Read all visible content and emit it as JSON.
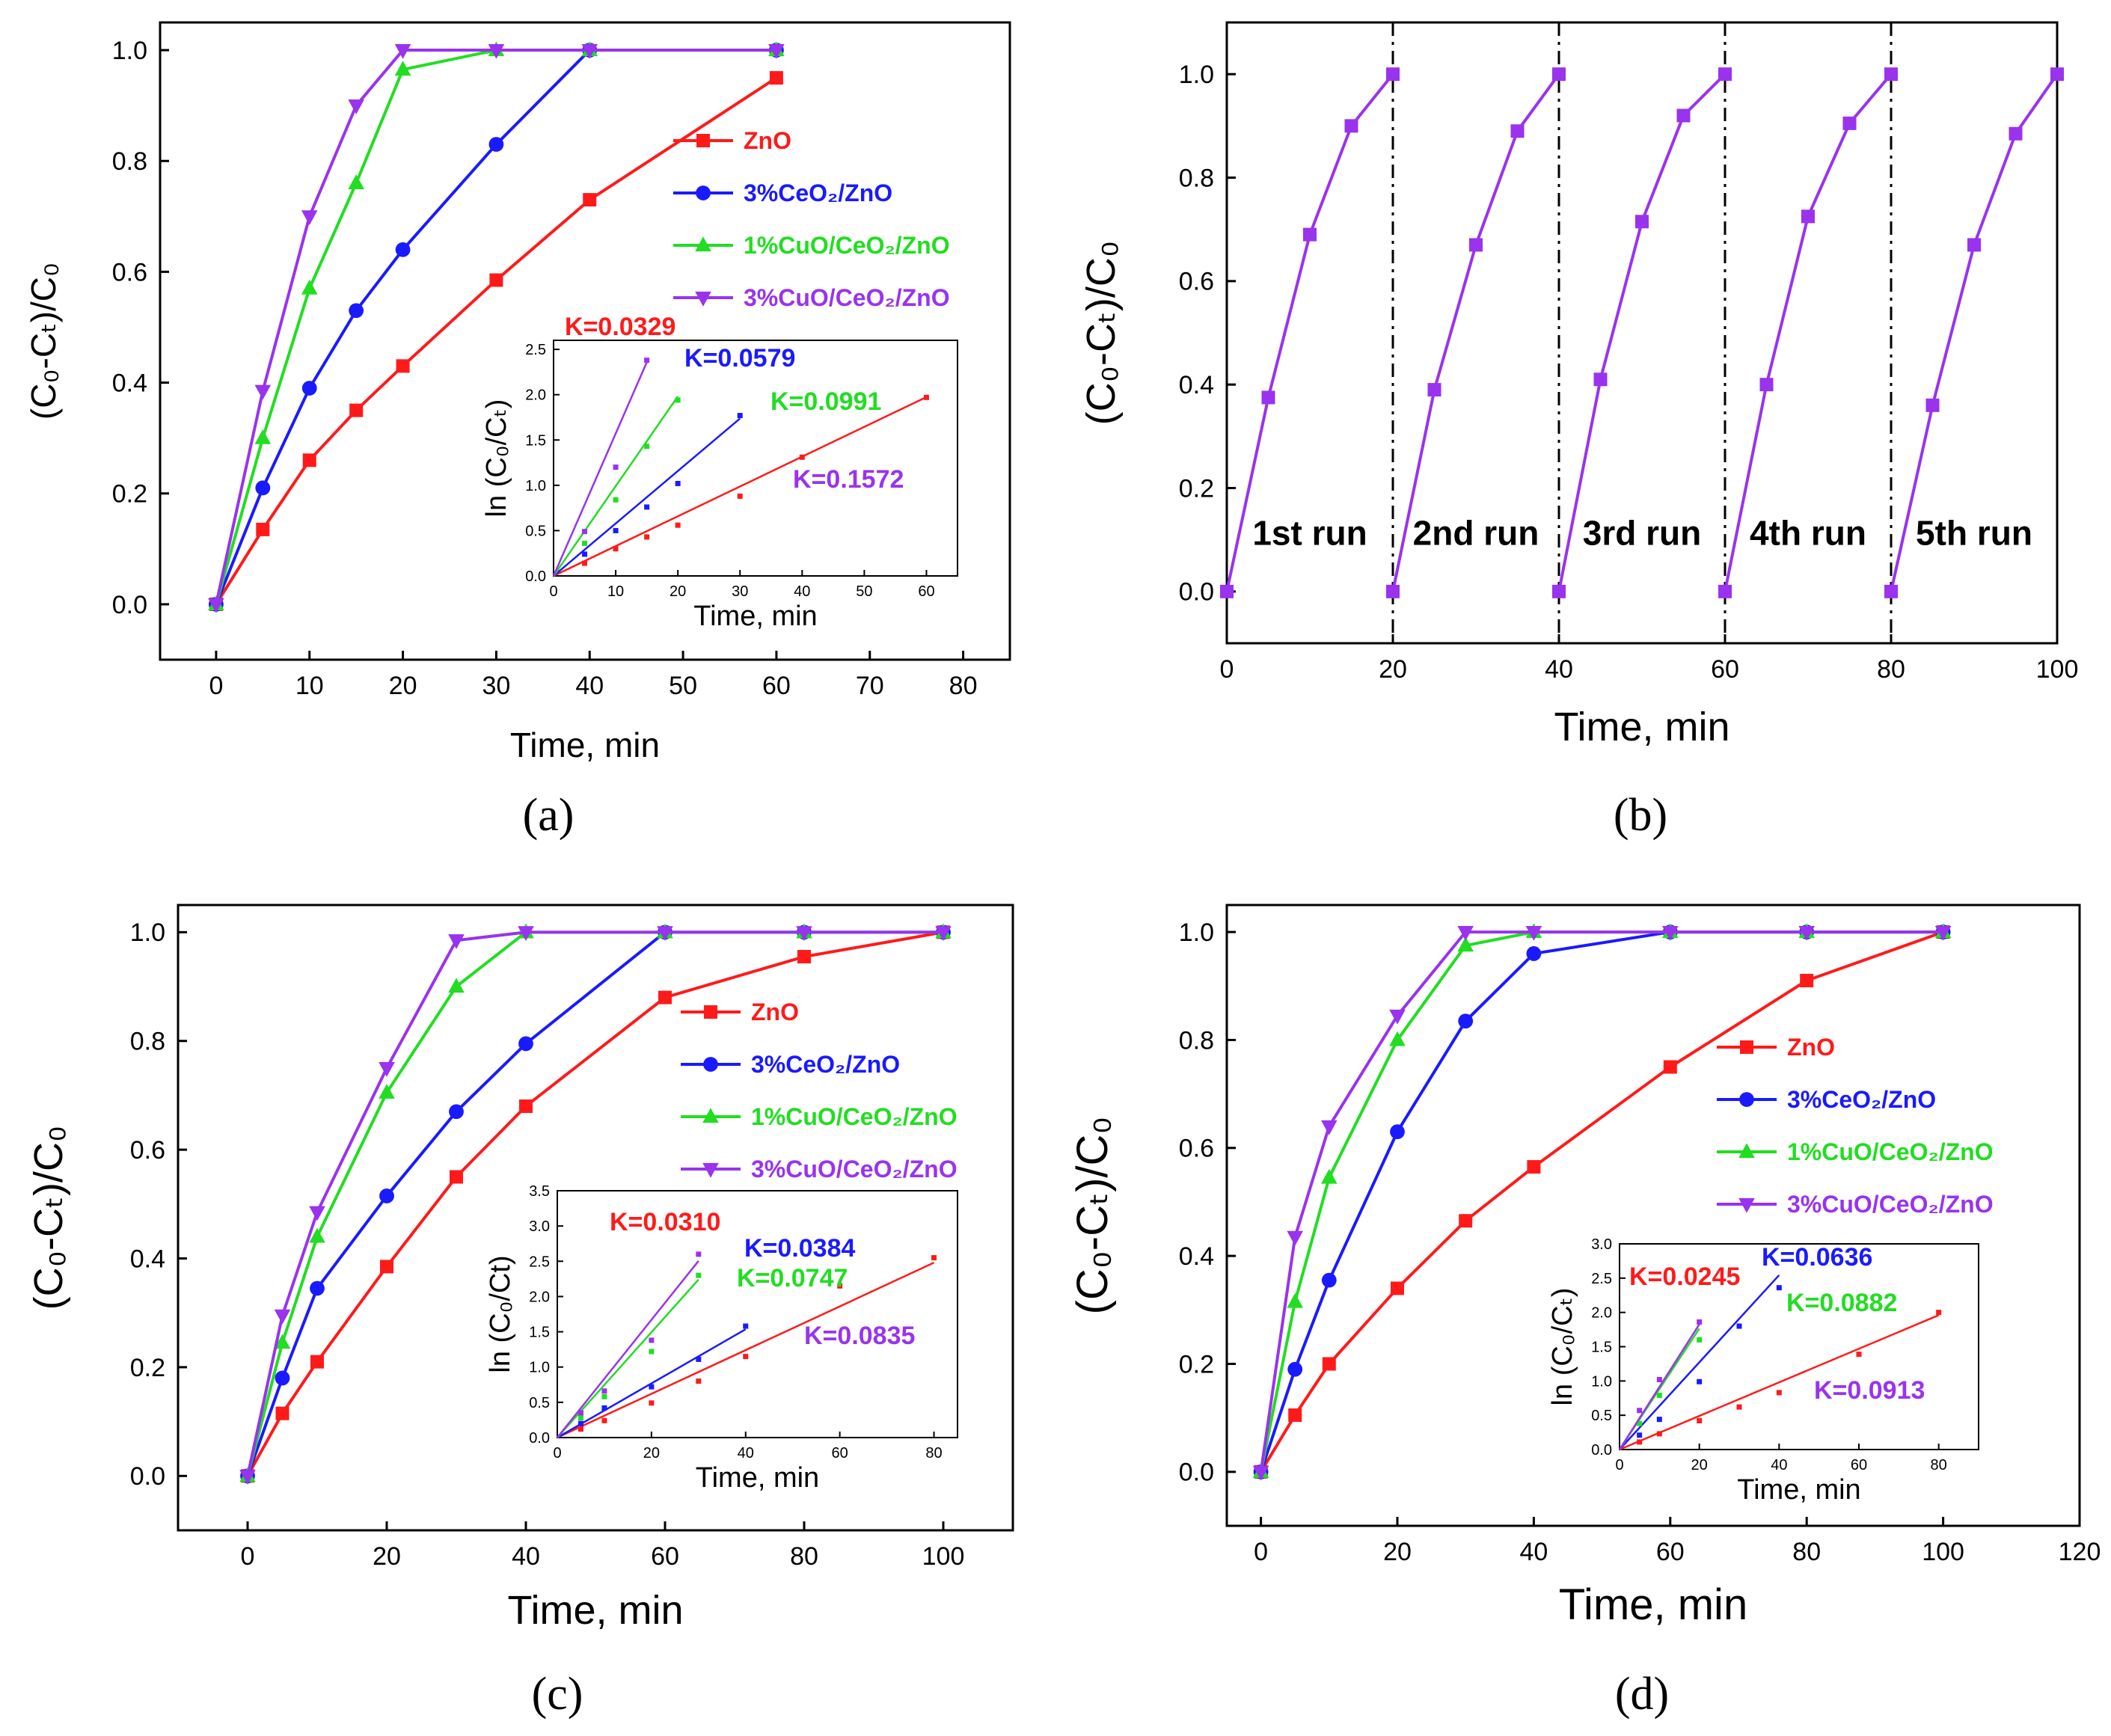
{
  "colors": {
    "zno": "#ff1a1a",
    "ceo2": "#1a1aff",
    "cuo1": "#22dd22",
    "cuo3": "#9933ee",
    "axis": "#000000"
  },
  "chart_data": [
    {
      "id": "a",
      "type": "line",
      "caption": "(a)",
      "xlabel": "Time, min",
      "ylabel": "(C₀-Cₜ)/C₀",
      "xlim": [
        -6,
        85
      ],
      "ylim": [
        -0.1,
        1.05
      ],
      "xticks": [
        0,
        10,
        20,
        30,
        40,
        50,
        60,
        70,
        80
      ],
      "yticks": [
        0.0,
        0.2,
        0.4,
        0.6,
        0.8,
        1.0
      ],
      "series": [
        {
          "name": "ZnO",
          "label": "ZnO",
          "marker": "square",
          "x": [
            0,
            5,
            10,
            15,
            20,
            30,
            40,
            60
          ],
          "values": [
            0.0,
            0.135,
            0.26,
            0.35,
            0.43,
            0.585,
            0.73,
            0.95
          ]
        },
        {
          "name": "3%CeO2/ZnO",
          "label": "3%CeO₂/ZnO",
          "marker": "circle",
          "x": [
            0,
            5,
            10,
            15,
            20,
            30,
            40,
            60
          ],
          "values": [
            0.0,
            0.21,
            0.39,
            0.53,
            0.64,
            0.83,
            1.0,
            1.0
          ]
        },
        {
          "name": "1%CuO/CeO2/ZnO",
          "label": "1%CuO/CeO₂/ZnO",
          "marker": "triangle-up",
          "x": [
            0,
            5,
            10,
            15,
            20,
            30,
            40,
            60
          ],
          "values": [
            0.0,
            0.3,
            0.57,
            0.76,
            0.965,
            1.0,
            1.0,
            1.0
          ]
        },
        {
          "name": "3%CuO/CeO2/ZnO",
          "label": "3%CuO/CeO₂/ZnO",
          "marker": "triangle-down",
          "x": [
            0,
            5,
            10,
            15,
            20,
            30,
            40,
            60
          ],
          "values": [
            0.0,
            0.385,
            0.7,
            0.9,
            1.0,
            1.0,
            1.0,
            1.0
          ]
        }
      ],
      "inset": {
        "xlabel": "Time, min",
        "ylabel": "ln (C₀/Cₜ)",
        "xlim": [
          0,
          65
        ],
        "ylim": [
          0,
          2.6
        ],
        "xticks": [
          0,
          10,
          20,
          30,
          40,
          50,
          60
        ],
        "yticks": [
          0.0,
          0.5,
          1.0,
          1.5,
          2.0,
          2.5
        ],
        "series": [
          {
            "name": "ZnO",
            "k": 0.0329,
            "k_label": "K=0.0329",
            "x": [
              5,
              10,
              15,
              20,
              30,
              40,
              60
            ],
            "values": [
              0.14,
              0.3,
              0.43,
              0.56,
              0.88,
              1.31,
              1.97
            ]
          },
          {
            "name": "3%CeO2/ZnO",
            "k": 0.0579,
            "k_label": "K=0.0579",
            "x": [
              5,
              10,
              15,
              20,
              30
            ],
            "values": [
              0.24,
              0.5,
              0.76,
              1.02,
              1.77
            ]
          },
          {
            "name": "1%CuO/CeO2/ZnO",
            "k": 0.0991,
            "k_label": "K=0.0991",
            "x": [
              5,
              10,
              15,
              20
            ],
            "values": [
              0.36,
              0.84,
              1.43,
              1.94
            ]
          },
          {
            "name": "3%CuO/CeO2/ZnO",
            "k": 0.1572,
            "k_label": "K=0.1572",
            "x": [
              5,
              10,
              15
            ],
            "values": [
              0.49,
              1.2,
              2.38
            ]
          }
        ]
      }
    },
    {
      "id": "b",
      "type": "line",
      "caption": "(b)",
      "xlabel": "Time, min",
      "ylabel": "(C₀-Cₜ)/C₀",
      "xlim": [
        0,
        100
      ],
      "ylim": [
        -0.1,
        1.1
      ],
      "xticks": [
        0,
        20,
        40,
        60,
        80,
        100
      ],
      "yticks": [
        0.0,
        0.2,
        0.4,
        0.6,
        0.8,
        1.0
      ],
      "run_boundaries": [
        20,
        40,
        60,
        80
      ],
      "run_labels": [
        "1st run",
        "2nd run",
        "3rd run",
        "4th run",
        "5th run"
      ],
      "runs": [
        {
          "x": [
            0,
            5,
            10,
            15,
            20
          ],
          "values": [
            0.0,
            0.375,
            0.69,
            0.9,
            1.0
          ]
        },
        {
          "x": [
            20,
            25,
            30,
            35,
            40
          ],
          "values": [
            0.0,
            0.39,
            0.67,
            0.89,
            1.0
          ]
        },
        {
          "x": [
            40,
            45,
            50,
            55,
            60
          ],
          "values": [
            0.0,
            0.41,
            0.715,
            0.92,
            1.0
          ]
        },
        {
          "x": [
            60,
            65,
            70,
            75,
            80
          ],
          "values": [
            0.0,
            0.4,
            0.725,
            0.905,
            1.0
          ]
        },
        {
          "x": [
            80,
            85,
            90,
            95,
            100
          ],
          "values": [
            0.0,
            0.36,
            0.67,
            0.885,
            1.0
          ]
        }
      ]
    },
    {
      "id": "c",
      "type": "line",
      "caption": "(c)",
      "xlabel": "Time, min",
      "ylabel": "(C₀-Cₜ)/C₀",
      "xlim": [
        -10,
        110
      ],
      "ylim": [
        -0.1,
        1.05
      ],
      "xticks": [
        0,
        20,
        40,
        60,
        80,
        100
      ],
      "yticks": [
        0.0,
        0.2,
        0.4,
        0.6,
        0.8,
        1.0
      ],
      "series": [
        {
          "name": "ZnO",
          "label": "ZnO",
          "marker": "square",
          "x": [
            0,
            5,
            10,
            20,
            30,
            40,
            60,
            80,
            100
          ],
          "values": [
            0.0,
            0.115,
            0.21,
            0.385,
            0.55,
            0.68,
            0.88,
            0.955,
            1.0
          ]
        },
        {
          "name": "3%CeO2/ZnO",
          "label": "3%CeO₂/ZnO",
          "marker": "circle",
          "x": [
            0,
            5,
            10,
            20,
            30,
            40,
            60,
            80,
            100
          ],
          "values": [
            0.0,
            0.18,
            0.345,
            0.515,
            0.67,
            0.795,
            1.0,
            1.0,
            1.0
          ]
        },
        {
          "name": "1%CuO/CeO2/ZnO",
          "label": "1%CuO/CeO₂/ZnO",
          "marker": "triangle-up",
          "x": [
            0,
            5,
            10,
            20,
            30,
            40,
            60,
            80,
            100
          ],
          "values": [
            0.0,
            0.245,
            0.44,
            0.705,
            0.9,
            1.0,
            1.0,
            1.0,
            1.0
          ]
        },
        {
          "name": "3%CuO/CeO2/ZnO",
          "label": "3%CuO/CeO₂/ZnO",
          "marker": "triangle-down",
          "x": [
            0,
            5,
            10,
            20,
            30,
            40,
            60,
            80,
            100
          ],
          "values": [
            0.0,
            0.295,
            0.485,
            0.75,
            0.985,
            1.0,
            1.0,
            1.0,
            1.0
          ]
        }
      ],
      "inset": {
        "xlabel": "Time, min",
        "ylabel": "ln (C₀/Ct)",
        "xlim": [
          0,
          85
        ],
        "ylim": [
          0,
          3.5
        ],
        "xticks": [
          0,
          20,
          40,
          60,
          80
        ],
        "yticks": [
          0.0,
          0.5,
          1.0,
          1.5,
          2.0,
          2.5,
          3.0,
          3.5
        ],
        "series": [
          {
            "name": "ZnO",
            "k": 0.031,
            "k_label": "K=0.0310",
            "x": [
              5,
              10,
              20,
              30,
              40,
              60,
              80
            ],
            "values": [
              0.12,
              0.24,
              0.49,
              0.8,
              1.15,
              2.15,
              2.55
            ]
          },
          {
            "name": "3%CeO2/ZnO",
            "k": 0.0384,
            "k_label": "K=0.0384",
            "x": [
              5,
              10,
              20,
              30,
              40
            ],
            "values": [
              0.2,
              0.42,
              0.72,
              1.11,
              1.58
            ]
          },
          {
            "name": "1%CuO/CeO2/ZnO",
            "k": 0.0747,
            "k_label": "K=0.0747",
            "x": [
              5,
              10,
              20,
              30
            ],
            "values": [
              0.28,
              0.58,
              1.22,
              2.3
            ]
          },
          {
            "name": "3%CuO/CeO2/ZnO",
            "k": 0.0835,
            "k_label": "K=0.0835",
            "x": [
              5,
              10,
              20,
              30
            ],
            "values": [
              0.35,
              0.66,
              1.38,
              2.6
            ]
          }
        ]
      }
    },
    {
      "id": "d",
      "type": "line",
      "caption": "(d)",
      "xlabel": "Time, min",
      "ylabel": "(C₀-Cₜ)/C₀",
      "xlim": [
        -5,
        120
      ],
      "ylim": [
        -0.1,
        1.05
      ],
      "xticks": [
        0,
        20,
        40,
        60,
        80,
        100,
        120
      ],
      "yticks": [
        0.0,
        0.2,
        0.4,
        0.6,
        0.8,
        1.0
      ],
      "series": [
        {
          "name": "ZnO",
          "label": "ZnO",
          "marker": "square",
          "x": [
            0,
            5,
            10,
            20,
            30,
            40,
            60,
            80,
            100
          ],
          "values": [
            0.0,
            0.105,
            0.2,
            0.34,
            0.465,
            0.565,
            0.75,
            0.91,
            1.0
          ]
        },
        {
          "name": "3%CeO2/ZnO",
          "label": "3%CeO₂/ZnO",
          "marker": "circle",
          "x": [
            0,
            5,
            10,
            20,
            30,
            40,
            60,
            80,
            100
          ],
          "values": [
            0.0,
            0.19,
            0.355,
            0.63,
            0.835,
            0.96,
            1.0,
            1.0,
            1.0
          ]
        },
        {
          "name": "1%CuO/CeO2/ZnO",
          "label": "1%CuO/CeO₂/ZnO",
          "marker": "triangle-up",
          "x": [
            0,
            5,
            10,
            20,
            30,
            40,
            60,
            80,
            100
          ],
          "values": [
            0.0,
            0.315,
            0.545,
            0.8,
            0.975,
            1.0,
            1.0,
            1.0,
            1.0
          ]
        },
        {
          "name": "3%CuO/CeO2/ZnO",
          "label": "3%CuO/CeO₂/ZnO",
          "marker": "triangle-down",
          "x": [
            0,
            5,
            10,
            20,
            30,
            40,
            60,
            80,
            100
          ],
          "values": [
            0.0,
            0.435,
            0.64,
            0.845,
            1.0,
            1.0,
            1.0,
            1.0,
            1.0
          ]
        }
      ],
      "inset": {
        "xlabel": "Time, min",
        "ylabel": "ln (C₀/Cₜ)",
        "xlim": [
          0,
          90
        ],
        "ylim": [
          0,
          3.0
        ],
        "xticks": [
          0,
          20,
          40,
          60,
          80
        ],
        "yticks": [
          0.0,
          0.5,
          1.0,
          1.5,
          2.0,
          2.5,
          3.0
        ],
        "series": [
          {
            "name": "ZnO",
            "k": 0.0245,
            "k_label": "K=0.0245",
            "x": [
              5,
              10,
              20,
              30,
              40,
              60,
              80
            ],
            "values": [
              0.11,
              0.23,
              0.42,
              0.62,
              0.83,
              1.39,
              2.0
            ]
          },
          {
            "name": "3%CeO2/ZnO",
            "k": 0.0636,
            "k_label": "K=0.0636",
            "x": [
              5,
              10,
              20,
              30,
              40
            ],
            "values": [
              0.21,
              0.44,
              0.99,
              1.8,
              2.36
            ]
          },
          {
            "name": "1%CuO/CeO2/ZnO",
            "k": 0.0882,
            "k_label": "K=0.0882",
            "x": [
              5,
              10,
              20
            ],
            "values": [
              0.38,
              0.79,
              1.6
            ]
          },
          {
            "name": "3%CuO/CeO2/ZnO",
            "k": 0.0913,
            "k_label": "K=0.0913",
            "x": [
              5,
              10,
              20
            ],
            "values": [
              0.57,
              1.02,
              1.86
            ]
          }
        ]
      }
    }
  ]
}
